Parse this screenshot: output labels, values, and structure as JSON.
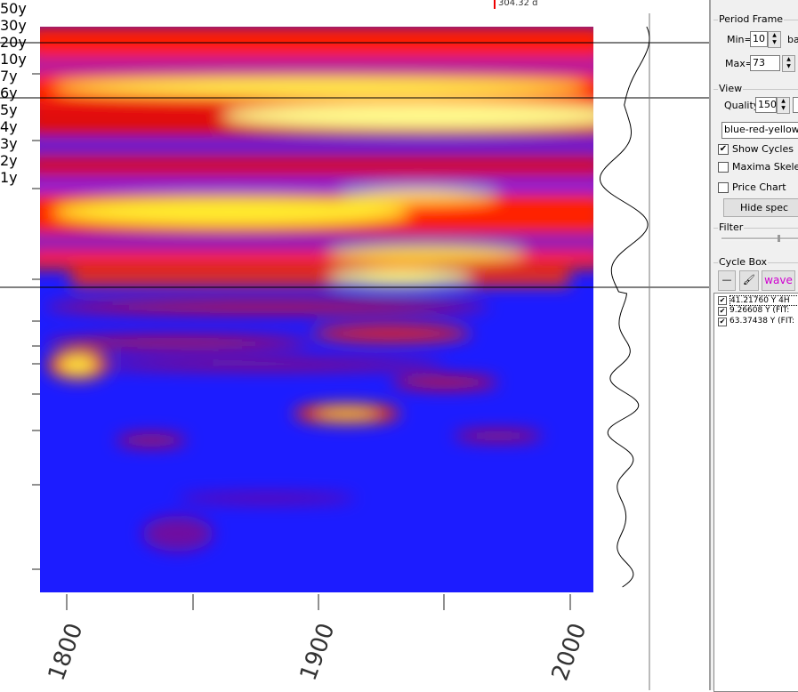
{
  "cursor_label": "304.32 d",
  "y_axis": {
    "labels": [
      "50y",
      "30y",
      "20y",
      "10y",
      "7y",
      "6y",
      "5y",
      "4y",
      "3y",
      "2y",
      "1y"
    ]
  },
  "x_axis": {
    "labels": [
      "1800",
      "1900",
      "2000"
    ]
  },
  "panel": {
    "period_frame": {
      "title": "Period Frame",
      "min_label": "Min=",
      "min_value": "10",
      "min_unit": "ba",
      "max_label": "Max=",
      "max_value": "73"
    },
    "view": {
      "title": "View",
      "quality_label": "Quality",
      "quality_value": "150",
      "palette": "blue-red-yellow",
      "checkboxes": [
        {
          "label": "Show Cycles",
          "checked": true
        },
        {
          "label": "Maxima Skeletor",
          "checked": false
        },
        {
          "label": "Price Chart",
          "checked": false
        }
      ],
      "button": "Hide spec"
    },
    "filter": {
      "title": "Filter"
    },
    "cycle_box": {
      "title": "Cycle Box",
      "wave_button": "wave",
      "items": [
        "41.21760 Y 4H",
        "9.26608 Y (FIT:",
        "63.37438 Y (FIT:"
      ]
    }
  }
}
